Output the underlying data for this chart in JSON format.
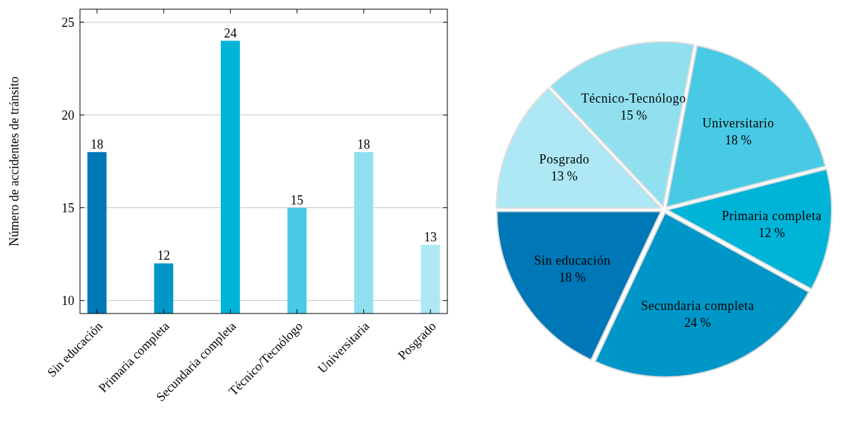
{
  "chart_data": [
    {
      "type": "bar",
      "ylabel": "Número de accidentes de tránsito",
      "categories": [
        "Sin educación",
        "Primaria completa",
        "Secundaria completa",
        "Técnico/Tecnólogo",
        "Universitaria",
        "Posgrado"
      ],
      "values": [
        18,
        12,
        24,
        15,
        18,
        13
      ],
      "colors": [
        "#0077b6",
        "#0096c7",
        "#00b4d8",
        "#48cae4",
        "#90e0ef",
        "#ade8f4"
      ],
      "ylim": [
        9.3,
        25.7
      ],
      "yticks": [
        10,
        15,
        20,
        25
      ],
      "grid": "y",
      "data_labels": true
    },
    {
      "type": "pie",
      "categories": [
        "Sin educación",
        "Secundaria completa",
        "Primaria completa",
        "Universitario",
        "Técnico-Tecnólogo",
        "Posgrado"
      ],
      "values": [
        18,
        24,
        12,
        18,
        15,
        13
      ],
      "value_labels": [
        "18 %",
        "24 %",
        "12 %",
        "18 %",
        "15 %",
        "13 %"
      ],
      "colors": [
        "#0077b6",
        "#0096c7",
        "#00b4d8",
        "#48cae4",
        "#90e0ef",
        "#ade8f4"
      ]
    }
  ]
}
